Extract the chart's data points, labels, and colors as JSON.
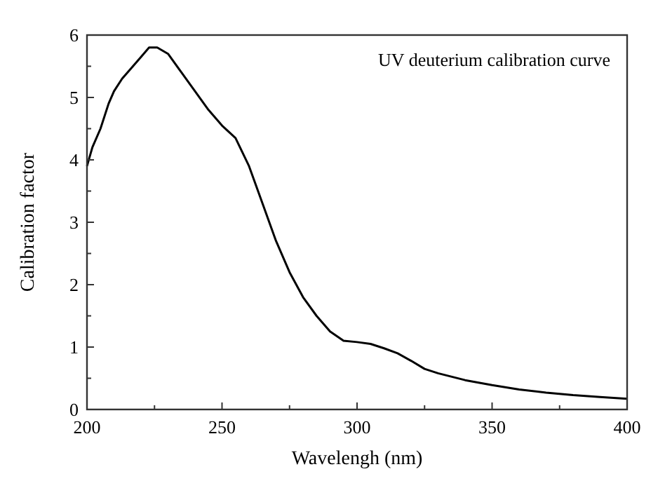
{
  "chart_data": {
    "type": "line",
    "xlabel": "Wavelengh (nm)",
    "ylabel": "Calibration factor",
    "annotations": [
      "UV deuterium calibration curve"
    ],
    "x": [
      200,
      202,
      205,
      208,
      210,
      213,
      216,
      220,
      223,
      226,
      230,
      235,
      240,
      245,
      250,
      255,
      260,
      265,
      270,
      275,
      280,
      285,
      290,
      295,
      300,
      305,
      310,
      315,
      320,
      325,
      330,
      340,
      350,
      360,
      370,
      380,
      390,
      400
    ],
    "series": [
      {
        "color": "#000000",
        "values": [
          3.9,
          4.2,
          4.5,
          4.9,
          5.1,
          5.3,
          5.45,
          5.65,
          5.8,
          5.8,
          5.7,
          5.4,
          5.1,
          4.8,
          4.55,
          4.35,
          3.9,
          3.3,
          2.7,
          2.2,
          1.8,
          1.5,
          1.25,
          1.1,
          1.08,
          1.05,
          0.98,
          0.9,
          0.78,
          0.65,
          0.58,
          0.47,
          0.39,
          0.32,
          0.27,
          0.23,
          0.2,
          0.17
        ]
      }
    ],
    "xlim": [
      200,
      400
    ],
    "xticks": [
      200,
      {
        "value": 225,
        "label": null
      },
      250,
      {
        "value": 275,
        "label": null
      },
      300,
      {
        "value": 325,
        "label": null
      },
      350,
      {
        "value": 375,
        "label": null
      },
      400
    ],
    "ylim": [
      0,
      6
    ],
    "yticks": [
      0,
      {
        "value": 0.5,
        "label": null
      },
      1,
      {
        "value": 1.5,
        "label": null
      },
      2,
      {
        "value": 2.5,
        "label": null
      },
      3,
      {
        "value": 3.5,
        "label": null
      },
      4,
      {
        "value": 4.5,
        "label": null
      },
      5,
      {
        "value": 5.5,
        "label": null
      },
      6
    ],
    "grid": false,
    "marker": "none",
    "line_style": "solid"
  }
}
